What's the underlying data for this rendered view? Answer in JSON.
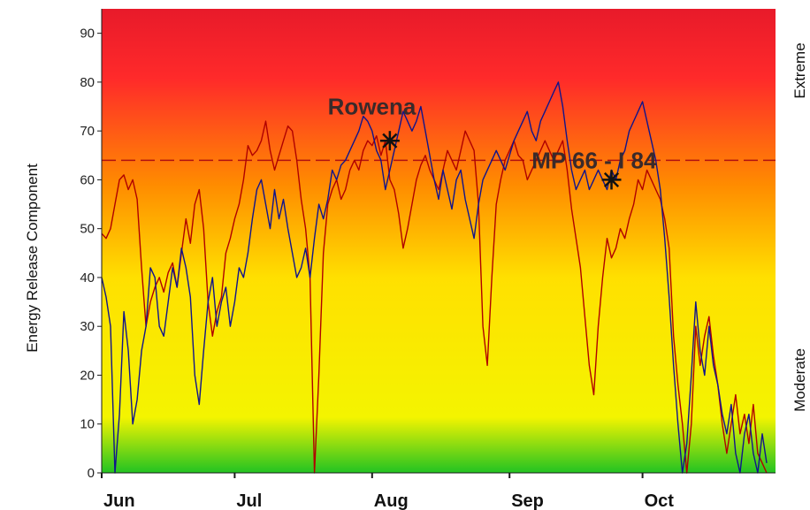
{
  "chart_data": {
    "type": "line",
    "ylabel": "Energy Release Component",
    "right_labels": {
      "top": "Extreme",
      "bottom": "Moderate"
    },
    "ylim": [
      0,
      95
    ],
    "xlim": [
      0,
      152
    ],
    "y_ticks": [
      0,
      10,
      20,
      30,
      40,
      50,
      60,
      70,
      80,
      90
    ],
    "x_ticks": [
      {
        "label": "Jun",
        "x": 0
      },
      {
        "label": "Jul",
        "x": 30
      },
      {
        "label": "Aug",
        "x": 61
      },
      {
        "label": "Sep",
        "x": 92
      },
      {
        "label": "Oct",
        "x": 122
      }
    ],
    "reference_line": {
      "y": 64,
      "color": "#b01010",
      "style": "dashed"
    },
    "background_gradient": [
      "#22c322",
      "#f4f400",
      "#ffe000",
      "#ff8c00",
      "#ff2a2a",
      "#e81a2a"
    ],
    "series": [
      {
        "color": "#b00000",
        "points": [
          [
            0,
            49
          ],
          [
            1,
            48
          ],
          [
            2,
            50
          ],
          [
            3,
            55
          ],
          [
            4,
            60
          ],
          [
            5,
            61
          ],
          [
            6,
            58
          ],
          [
            7,
            60
          ],
          [
            8,
            56
          ],
          [
            9,
            42
          ],
          [
            10,
            30
          ],
          [
            11,
            35
          ],
          [
            12,
            38
          ],
          [
            13,
            40
          ],
          [
            14,
            37
          ],
          [
            15,
            41
          ],
          [
            16,
            43
          ],
          [
            17,
            38
          ],
          [
            18,
            45
          ],
          [
            19,
            52
          ],
          [
            20,
            47
          ],
          [
            21,
            55
          ],
          [
            22,
            58
          ],
          [
            23,
            50
          ],
          [
            24,
            35
          ],
          [
            25,
            28
          ],
          [
            26,
            33
          ],
          [
            27,
            36
          ],
          [
            28,
            45
          ],
          [
            29,
            48
          ],
          [
            30,
            52
          ],
          [
            31,
            55
          ],
          [
            32,
            60
          ],
          [
            33,
            67
          ],
          [
            34,
            65
          ],
          [
            35,
            66
          ],
          [
            36,
            68
          ],
          [
            37,
            72
          ],
          [
            38,
            66
          ],
          [
            39,
            62
          ],
          [
            40,
            65
          ],
          [
            41,
            68
          ],
          [
            42,
            71
          ],
          [
            43,
            70
          ],
          [
            44,
            64
          ],
          [
            45,
            56
          ],
          [
            46,
            50
          ],
          [
            47,
            40
          ],
          [
            48,
            0
          ],
          [
            49,
            20
          ],
          [
            50,
            45
          ],
          [
            51,
            55
          ],
          [
            52,
            58
          ],
          [
            53,
            60
          ],
          [
            54,
            56
          ],
          [
            55,
            58
          ],
          [
            56,
            62
          ],
          [
            57,
            64
          ],
          [
            58,
            62
          ],
          [
            59,
            66
          ],
          [
            60,
            68
          ],
          [
            61,
            67
          ],
          [
            62,
            69
          ],
          [
            63,
            65
          ],
          [
            64,
            68
          ],
          [
            65,
            60
          ],
          [
            66,
            58
          ],
          [
            67,
            53
          ],
          [
            68,
            46
          ],
          [
            69,
            50
          ],
          [
            70,
            55
          ],
          [
            71,
            60
          ],
          [
            72,
            63
          ],
          [
            73,
            65
          ],
          [
            74,
            62
          ],
          [
            75,
            60
          ],
          [
            76,
            58
          ],
          [
            77,
            62
          ],
          [
            78,
            66
          ],
          [
            79,
            64
          ],
          [
            80,
            62
          ],
          [
            81,
            66
          ],
          [
            82,
            70
          ],
          [
            83,
            68
          ],
          [
            84,
            66
          ],
          [
            85,
            55
          ],
          [
            86,
            30
          ],
          [
            87,
            22
          ],
          [
            88,
            40
          ],
          [
            89,
            55
          ],
          [
            90,
            60
          ],
          [
            91,
            64
          ],
          [
            92,
            66
          ],
          [
            93,
            68
          ],
          [
            94,
            65
          ],
          [
            95,
            64
          ],
          [
            96,
            60
          ],
          [
            97,
            62
          ],
          [
            98,
            64
          ],
          [
            99,
            66
          ],
          [
            100,
            68
          ],
          [
            101,
            66
          ],
          [
            102,
            64
          ],
          [
            103,
            66
          ],
          [
            104,
            68
          ],
          [
            105,
            62
          ],
          [
            106,
            54
          ],
          [
            107,
            48
          ],
          [
            108,
            42
          ],
          [
            109,
            32
          ],
          [
            110,
            22
          ],
          [
            111,
            16
          ],
          [
            112,
            30
          ],
          [
            113,
            40
          ],
          [
            114,
            48
          ],
          [
            115,
            44
          ],
          [
            116,
            46
          ],
          [
            117,
            50
          ],
          [
            118,
            48
          ],
          [
            119,
            52
          ],
          [
            120,
            55
          ],
          [
            121,
            60
          ],
          [
            122,
            58
          ],
          [
            123,
            62
          ],
          [
            124,
            60
          ],
          [
            125,
            58
          ],
          [
            126,
            56
          ],
          [
            127,
            52
          ],
          [
            128,
            46
          ],
          [
            129,
            28
          ],
          [
            130,
            18
          ],
          [
            131,
            10
          ],
          [
            132,
            0
          ],
          [
            133,
            10
          ],
          [
            134,
            30
          ],
          [
            135,
            22
          ],
          [
            136,
            28
          ],
          [
            137,
            32
          ],
          [
            138,
            24
          ],
          [
            139,
            18
          ],
          [
            140,
            10
          ],
          [
            141,
            4
          ],
          [
            142,
            10
          ],
          [
            143,
            16
          ],
          [
            144,
            8
          ],
          [
            145,
            12
          ],
          [
            146,
            6
          ],
          [
            147,
            14
          ],
          [
            148,
            4
          ],
          [
            149,
            2
          ],
          [
            150,
            0
          ]
        ]
      },
      {
        "color": "#10148c",
        "points": [
          [
            0,
            40
          ],
          [
            1,
            36
          ],
          [
            2,
            30
          ],
          [
            3,
            0
          ],
          [
            4,
            12
          ],
          [
            5,
            33
          ],
          [
            6,
            25
          ],
          [
            7,
            10
          ],
          [
            8,
            15
          ],
          [
            9,
            25
          ],
          [
            10,
            30
          ],
          [
            11,
            42
          ],
          [
            12,
            40
          ],
          [
            13,
            30
          ],
          [
            14,
            28
          ],
          [
            15,
            35
          ],
          [
            16,
            42
          ],
          [
            17,
            38
          ],
          [
            18,
            46
          ],
          [
            19,
            42
          ],
          [
            20,
            36
          ],
          [
            21,
            20
          ],
          [
            22,
            14
          ],
          [
            23,
            25
          ],
          [
            24,
            35
          ],
          [
            25,
            40
          ],
          [
            26,
            30
          ],
          [
            27,
            35
          ],
          [
            28,
            38
          ],
          [
            29,
            30
          ],
          [
            30,
            35
          ],
          [
            31,
            42
          ],
          [
            32,
            40
          ],
          [
            33,
            45
          ],
          [
            34,
            52
          ],
          [
            35,
            58
          ],
          [
            36,
            60
          ],
          [
            37,
            55
          ],
          [
            38,
            50
          ],
          [
            39,
            58
          ],
          [
            40,
            52
          ],
          [
            41,
            56
          ],
          [
            42,
            50
          ],
          [
            43,
            45
          ],
          [
            44,
            40
          ],
          [
            45,
            42
          ],
          [
            46,
            46
          ],
          [
            47,
            40
          ],
          [
            48,
            48
          ],
          [
            49,
            55
          ],
          [
            50,
            52
          ],
          [
            51,
            56
          ],
          [
            52,
            62
          ],
          [
            53,
            60
          ],
          [
            54,
            63
          ],
          [
            55,
            64
          ],
          [
            56,
            66
          ],
          [
            57,
            68
          ],
          [
            58,
            70
          ],
          [
            59,
            73
          ],
          [
            60,
            72
          ],
          [
            61,
            70
          ],
          [
            62,
            66
          ],
          [
            63,
            64
          ],
          [
            64,
            58
          ],
          [
            65,
            62
          ],
          [
            66,
            66
          ],
          [
            67,
            70
          ],
          [
            68,
            74
          ],
          [
            69,
            72
          ],
          [
            70,
            70
          ],
          [
            71,
            72
          ],
          [
            72,
            75
          ],
          [
            73,
            70
          ],
          [
            74,
            65
          ],
          [
            75,
            60
          ],
          [
            76,
            56
          ],
          [
            77,
            62
          ],
          [
            78,
            58
          ],
          [
            79,
            54
          ],
          [
            80,
            60
          ],
          [
            81,
            62
          ],
          [
            82,
            56
          ],
          [
            83,
            52
          ],
          [
            84,
            48
          ],
          [
            85,
            55
          ],
          [
            86,
            60
          ],
          [
            87,
            62
          ],
          [
            88,
            64
          ],
          [
            89,
            66
          ],
          [
            90,
            64
          ],
          [
            91,
            62
          ],
          [
            92,
            65
          ],
          [
            93,
            68
          ],
          [
            94,
            70
          ],
          [
            95,
            72
          ],
          [
            96,
            74
          ],
          [
            97,
            70
          ],
          [
            98,
            68
          ],
          [
            99,
            72
          ],
          [
            100,
            74
          ],
          [
            101,
            76
          ],
          [
            102,
            78
          ],
          [
            103,
            80
          ],
          [
            104,
            75
          ],
          [
            105,
            68
          ],
          [
            106,
            62
          ],
          [
            107,
            58
          ],
          [
            108,
            60
          ],
          [
            109,
            62
          ],
          [
            110,
            58
          ],
          [
            111,
            60
          ],
          [
            112,
            62
          ],
          [
            113,
            60
          ],
          [
            114,
            58
          ],
          [
            115,
            62
          ],
          [
            116,
            60
          ],
          [
            117,
            64
          ],
          [
            118,
            66
          ],
          [
            119,
            70
          ],
          [
            120,
            72
          ],
          [
            121,
            74
          ],
          [
            122,
            76
          ],
          [
            123,
            72
          ],
          [
            124,
            68
          ],
          [
            125,
            64
          ],
          [
            126,
            58
          ],
          [
            127,
            48
          ],
          [
            128,
            36
          ],
          [
            129,
            22
          ],
          [
            130,
            10
          ],
          [
            131,
            0
          ],
          [
            132,
            6
          ],
          [
            133,
            20
          ],
          [
            134,
            35
          ],
          [
            135,
            25
          ],
          [
            136,
            20
          ],
          [
            137,
            30
          ],
          [
            138,
            22
          ],
          [
            139,
            18
          ],
          [
            140,
            12
          ],
          [
            141,
            8
          ],
          [
            142,
            14
          ],
          [
            143,
            4
          ],
          [
            144,
            0
          ],
          [
            145,
            8
          ],
          [
            146,
            12
          ],
          [
            147,
            4
          ],
          [
            148,
            0
          ],
          [
            149,
            8
          ],
          [
            150,
            2
          ]
        ]
      }
    ],
    "annotations": [
      {
        "label": "Rowena",
        "x": 65,
        "y": 68,
        "label_x": 51,
        "label_y": 75
      },
      {
        "label": "MP 66 - I 84",
        "x": 115,
        "y": 60,
        "label_x": 97,
        "label_y": 64
      }
    ]
  }
}
